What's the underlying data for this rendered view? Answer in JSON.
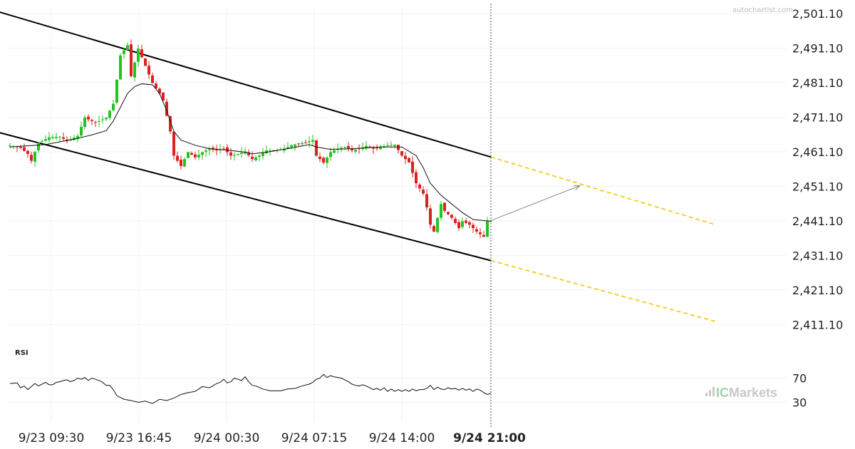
{
  "watermark": "autochartist.com",
  "brand": {
    "ic": "IC",
    "rest": "Markets"
  },
  "rsi_label": "RSI",
  "chart_data": {
    "type": "candlestick",
    "price_axis": {
      "range": [
        2406.0,
        2503.0
      ],
      "ticks": [
        "2,501.10",
        "2,491.10",
        "2,481.10",
        "2,471.10",
        "2,461.10",
        "2,451.10",
        "2,441.10",
        "2,431.10",
        "2,421.10",
        "2,411.10"
      ],
      "tick_values": [
        2501.1,
        2491.1,
        2481.1,
        2471.1,
        2461.1,
        2451.1,
        2441.1,
        2431.1,
        2421.1,
        2411.1
      ]
    },
    "time_axis": {
      "labels": [
        "9/23 09:30",
        "9/23 16:45",
        "9/24 00:30",
        "9/24 07:15",
        "9/24 14:00",
        "9/24 21:00"
      ],
      "bold_label": "9/24 21:00"
    },
    "moving_average_color": "#111111",
    "candle_up_color": "#22c422",
    "candle_down_color": "#dd2020",
    "close_path": [
      [
        0,
        2462.9
      ],
      [
        3,
        2462.2
      ],
      [
        5,
        2460.5
      ],
      [
        6,
        2458.5
      ],
      [
        8,
        2463.8
      ],
      [
        11,
        2465.3
      ],
      [
        14,
        2465.5
      ],
      [
        16,
        2464.2
      ],
      [
        19,
        2465.7
      ],
      [
        21,
        2471.0
      ],
      [
        24,
        2469.5
      ],
      [
        27,
        2471.0
      ],
      [
        29,
        2475.0
      ],
      [
        31,
        2489.0
      ],
      [
        33,
        2492.0
      ],
      [
        34,
        2483.0
      ],
      [
        36,
        2491.0
      ],
      [
        38,
        2486.0
      ],
      [
        40,
        2481.0
      ],
      [
        42,
        2478.0
      ],
      [
        43,
        2476.0
      ],
      [
        45,
        2467.0
      ],
      [
        46,
        2460.0
      ],
      [
        48,
        2457.0
      ],
      [
        50,
        2461.0
      ],
      [
        52,
        2459.5
      ],
      [
        54,
        2461.0
      ],
      [
        56,
        2462.0
      ],
      [
        58,
        2461.5
      ],
      [
        60,
        2462.0
      ],
      [
        62,
        2460.0
      ],
      [
        64,
        2460.5
      ],
      [
        66,
        2461.2
      ],
      [
        68,
        2459.0
      ],
      [
        70,
        2460.0
      ],
      [
        72,
        2461.5
      ],
      [
        74,
        2461.5
      ],
      [
        77,
        2462.0
      ],
      [
        79,
        2463.0
      ],
      [
        81,
        2463.5
      ],
      [
        83,
        2463.8
      ],
      [
        85,
        2464.5
      ],
      [
        86,
        2460.0
      ],
      [
        88,
        2458.0
      ],
      [
        90,
        2461.0
      ],
      [
        92,
        2462.0
      ],
      [
        94,
        2462.5
      ],
      [
        96,
        2461.5
      ],
      [
        98,
        2462.0
      ],
      [
        100,
        2462.8
      ],
      [
        102,
        2462.0
      ],
      [
        104,
        2462.5
      ],
      [
        106,
        2463.0
      ],
      [
        108,
        2463.2
      ],
      [
        110,
        2460.0
      ],
      [
        112,
        2458.0
      ],
      [
        114,
        2452.0
      ],
      [
        116,
        2449.0
      ],
      [
        117,
        2445.0
      ],
      [
        118,
        2440.0
      ],
      [
        119,
        2438.0
      ],
      [
        120,
        2442.0
      ],
      [
        121,
        2446.0
      ],
      [
        122,
        2444.0
      ],
      [
        124,
        2442.0
      ],
      [
        126,
        2439.0
      ],
      [
        127,
        2441.0
      ],
      [
        129,
        2440.0
      ],
      [
        131,
        2438.0
      ],
      [
        133,
        2436.5
      ],
      [
        134,
        2441.0
      ],
      [
        135,
        2441.0
      ]
    ],
    "moving_average_path": [
      [
        0,
        2462.5
      ],
      [
        10,
        2463.2
      ],
      [
        19,
        2465.0
      ],
      [
        23,
        2466.0
      ],
      [
        27,
        2467.2
      ],
      [
        29,
        2470.0
      ],
      [
        31,
        2474.0
      ],
      [
        33,
        2478.0
      ],
      [
        35,
        2480.0
      ],
      [
        37,
        2480.8
      ],
      [
        40,
        2480.5
      ],
      [
        42,
        2478.0
      ],
      [
        44,
        2473.0
      ],
      [
        46,
        2467.0
      ],
      [
        48,
        2464.5
      ],
      [
        52,
        2463.0
      ],
      [
        56,
        2462.0
      ],
      [
        62,
        2461.5
      ],
      [
        66,
        2461.0
      ],
      [
        68,
        2460.5
      ],
      [
        72,
        2461.0
      ],
      [
        78,
        2462.0
      ],
      [
        84,
        2463.2
      ],
      [
        86,
        2462.5
      ],
      [
        90,
        2461.8
      ],
      [
        96,
        2462.0
      ],
      [
        104,
        2462.5
      ],
      [
        110,
        2462.5
      ],
      [
        114,
        2460.0
      ],
      [
        116,
        2456.5
      ],
      [
        118,
        2452.0
      ],
      [
        121,
        2448.5
      ],
      [
        124,
        2446.0
      ],
      [
        127,
        2443.5
      ],
      [
        130,
        2441.5
      ],
      [
        133,
        2441.2
      ],
      [
        135,
        2441.0
      ]
    ],
    "upper_channel": {
      "from": [
        -6,
        2502.5
      ],
      "to": [
        135,
        2459.6
      ]
    },
    "lower_channel": {
      "from": [
        -5,
        2467.2
      ],
      "to": [
        135,
        2429.6
      ]
    },
    "projection_upper": {
      "from": [
        135,
        2459.6
      ],
      "to": [
        198,
        2440.0
      ]
    },
    "projection_lower": {
      "from": [
        135,
        2429.6
      ],
      "to": [
        198,
        2412.0
      ]
    },
    "forecast_arrow": {
      "from": [
        135,
        2441.2
      ],
      "to": [
        160,
        2451.3
      ]
    },
    "rsi": {
      "ticks": [
        "70",
        "30"
      ],
      "tick_values": [
        70,
        30
      ],
      "values": [
        [
          0,
          61
        ],
        [
          2,
          62
        ],
        [
          3,
          54
        ],
        [
          4,
          57
        ],
        [
          5,
          51
        ],
        [
          6,
          56
        ],
        [
          7,
          61
        ],
        [
          8,
          57
        ],
        [
          9,
          60
        ],
        [
          10,
          63
        ],
        [
          11,
          59
        ],
        [
          12,
          59
        ],
        [
          13,
          63
        ],
        [
          14,
          64
        ],
        [
          15,
          66
        ],
        [
          16,
          67
        ],
        [
          17,
          64
        ],
        [
          18,
          66
        ],
        [
          19,
          70
        ],
        [
          20,
          68
        ],
        [
          21,
          71
        ],
        [
          22,
          66
        ],
        [
          23,
          70
        ],
        [
          24,
          68
        ],
        [
          25,
          66
        ],
        [
          26,
          63
        ],
        [
          27,
          58
        ],
        [
          28,
          58
        ],
        [
          29,
          51
        ],
        [
          30,
          41
        ],
        [
          32,
          35
        ],
        [
          34,
          33
        ],
        [
          36,
          30
        ],
        [
          38,
          32
        ],
        [
          40,
          28
        ],
        [
          42,
          35
        ],
        [
          44,
          33
        ],
        [
          46,
          37
        ],
        [
          48,
          43
        ],
        [
          50,
          46
        ],
        [
          52,
          48
        ],
        [
          54,
          56
        ],
        [
          56,
          54
        ],
        [
          58,
          61
        ],
        [
          59,
          63
        ],
        [
          60,
          68
        ],
        [
          61,
          62
        ],
        [
          62,
          64
        ],
        [
          63,
          70
        ],
        [
          64,
          68
        ],
        [
          65,
          66
        ],
        [
          66,
          72
        ],
        [
          67,
          64
        ],
        [
          68,
          58
        ],
        [
          69,
          57
        ],
        [
          71,
          52
        ],
        [
          73,
          49
        ],
        [
          76,
          49
        ],
        [
          78,
          52
        ],
        [
          80,
          53
        ],
        [
          82,
          57
        ],
        [
          84,
          60
        ],
        [
          85,
          63
        ],
        [
          86,
          68
        ],
        [
          87,
          70
        ],
        [
          88,
          76
        ],
        [
          89,
          71
        ],
        [
          90,
          74
        ],
        [
          91,
          72
        ],
        [
          93,
          70
        ],
        [
          95,
          64
        ],
        [
          96,
          60
        ],
        [
          97,
          58
        ],
        [
          98,
          57
        ],
        [
          99,
          59
        ],
        [
          100,
          57
        ],
        [
          101,
          54
        ],
        [
          102,
          51
        ],
        [
          103,
          53
        ],
        [
          104,
          50
        ],
        [
          105,
          54
        ],
        [
          106,
          48
        ],
        [
          107,
          52
        ],
        [
          108,
          48
        ],
        [
          109,
          51
        ],
        [
          110,
          48
        ],
        [
          111,
          51
        ],
        [
          112,
          48
        ],
        [
          113,
          52
        ],
        [
          114,
          49
        ],
        [
          115,
          51
        ],
        [
          116,
          51
        ],
        [
          117,
          53
        ],
        [
          118,
          58
        ],
        [
          119,
          51
        ],
        [
          120,
          55
        ],
        [
          121,
          52
        ],
        [
          122,
          51
        ],
        [
          123,
          54
        ],
        [
          124,
          52
        ],
        [
          125,
          53
        ],
        [
          126,
          50
        ],
        [
          127,
          53
        ],
        [
          128,
          50
        ],
        [
          129,
          52
        ],
        [
          130,
          48
        ],
        [
          131,
          52
        ],
        [
          132,
          50
        ],
        [
          133,
          46
        ],
        [
          134,
          43
        ],
        [
          135,
          45
        ]
      ]
    }
  }
}
